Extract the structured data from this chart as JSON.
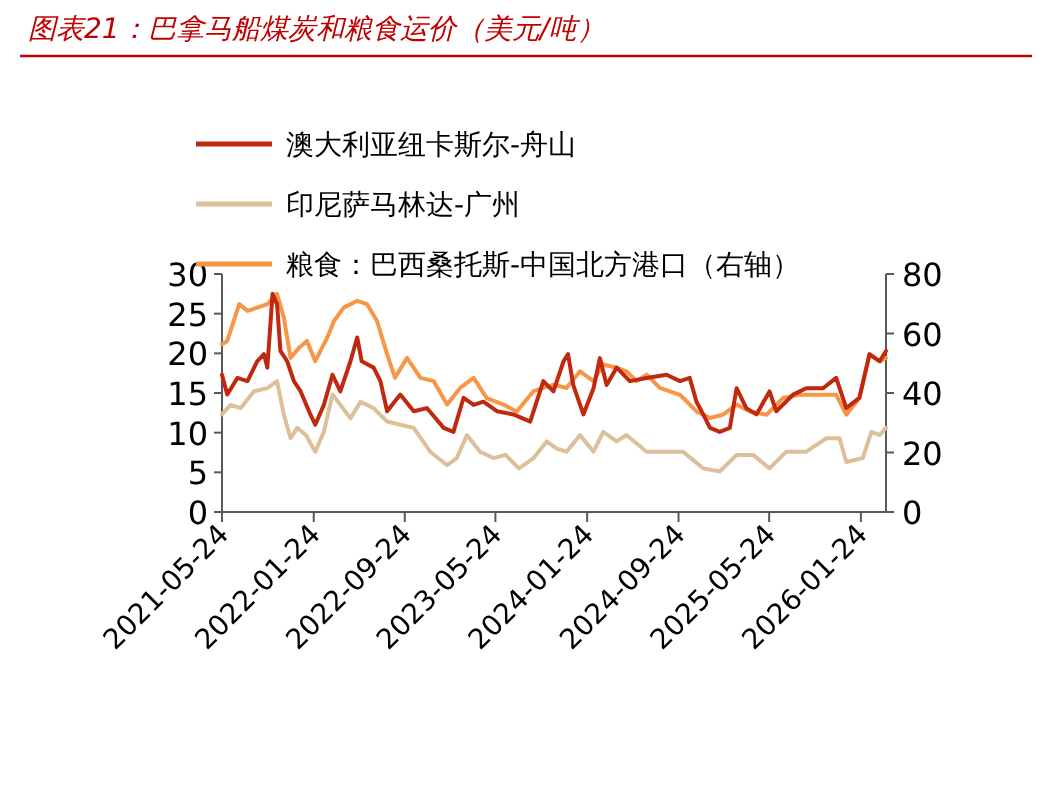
{
  "chart_data": {
    "type": "line",
    "title": "图表21：巴拿马船煤炭和粮食运价（美元/吨）",
    "legend": "top left",
    "grid": false,
    "xlim": [
      "2021-05-24",
      "2026-04-01"
    ],
    "xticks": [
      "2021-05-24",
      "2022-01-24",
      "2022-09-24",
      "2023-05-24",
      "2024-01-24",
      "2024-09-24",
      "2025-05-24",
      "2026-01-24"
    ],
    "ylim": [
      0,
      30
    ],
    "yticks": [
      0,
      5,
      10,
      15,
      20,
      25,
      30
    ],
    "y2lim": [
      0,
      80
    ],
    "y2ticks": [
      0,
      20,
      40,
      60,
      80
    ],
    "series": [
      {
        "name": "澳大利亚纽卡斯尔-舟山",
        "color": "#c0280f",
        "x": [
          "2021-05-24",
          "2021-06-07",
          "2021-07-04",
          "2021-07-31",
          "2021-08-26",
          "2021-09-13",
          "2021-09-22",
          "2021-10-06",
          "2021-10-18",
          "2021-10-27",
          "2021-11-14",
          "2021-12-02",
          "2021-12-20",
          "2022-01-15",
          "2022-01-28",
          "2022-02-20",
          "2022-03-15",
          "2022-04-05",
          "2022-05-02",
          "2022-05-20",
          "2022-06-01",
          "2022-07-03",
          "2022-07-21",
          "2022-08-08",
          "2022-09-12",
          "2022-10-18",
          "2022-11-22",
          "2023-01-06",
          "2023-02-01",
          "2023-02-28",
          "2023-03-27",
          "2023-04-22",
          "2023-05-28",
          "2023-07-11",
          "2023-08-25",
          "2023-09-29",
          "2023-10-26",
          "2023-11-22",
          "2023-12-04",
          "2023-12-18",
          "2024-01-14",
          "2024-02-10",
          "2024-02-27",
          "2024-03-16",
          "2024-04-12",
          "2024-05-17",
          "2024-07-01",
          "2024-08-23",
          "2024-09-28",
          "2024-10-24",
          "2024-11-11",
          "2024-11-29",
          "2024-12-17",
          "2025-01-12",
          "2025-02-08",
          "2025-02-26",
          "2025-03-24",
          "2025-04-20",
          "2025-05-25",
          "2025-06-12",
          "2025-07-27",
          "2025-08-31",
          "2025-10-15",
          "2025-11-19",
          "2025-12-16",
          "2026-01-20",
          "2026-02-16",
          "2026-03-15",
          "2026-04-01"
        ],
        "values": [
          17.3,
          14.8,
          16.9,
          16.5,
          19,
          19.9,
          18.2,
          27.5,
          26.2,
          20.3,
          19,
          16.5,
          15.2,
          12.3,
          11,
          13.5,
          17.3,
          15.2,
          19,
          22,
          19,
          18.2,
          16.5,
          12.7,
          14.8,
          12.7,
          13.1,
          10.6,
          10.1,
          14.4,
          13.5,
          13.9,
          12.7,
          12.3,
          11.4,
          16.5,
          15.2,
          19,
          19.9,
          16,
          12.3,
          15.6,
          19.4,
          16,
          18.2,
          16.5,
          16.9,
          17.3,
          16.5,
          16.9,
          13.9,
          12.3,
          10.6,
          10.1,
          10.6,
          15.6,
          13.1,
          12.3,
          15.2,
          12.7,
          14.8,
          15.6,
          15.6,
          16.9,
          13.1,
          14.4,
          19.9,
          19,
          20.3
        ]
      },
      {
        "name": "印尼萨马林达-广州",
        "color": "#dcc09a",
        "x": [
          "2021-05-24",
          "2021-06-16",
          "2021-07-13",
          "2021-08-17",
          "2021-09-22",
          "2021-10-18",
          "2021-11-05",
          "2021-11-23",
          "2021-12-11",
          "2022-01-03",
          "2022-01-28",
          "2022-02-20",
          "2022-03-15",
          "2022-04-05",
          "2022-05-02",
          "2022-05-29",
          "2022-07-03",
          "2022-08-08",
          "2022-09-12",
          "2022-10-18",
          "2022-12-01",
          "2023-01-15",
          "2023-02-10",
          "2023-03-09",
          "2023-04-13",
          "2023-05-19",
          "2023-06-20",
          "2023-07-26",
          "2023-09-03",
          "2023-10-08",
          "2023-11-04",
          "2023-11-30",
          "2024-01-05",
          "2024-02-10",
          "2024-03-07",
          "2024-04-12",
          "2024-05-08",
          "2024-07-01",
          "2024-08-23",
          "2024-10-06",
          "2024-11-29",
          "2025-01-12",
          "2025-02-26",
          "2025-04-11",
          "2025-05-25",
          "2025-07-09",
          "2025-08-31",
          "2025-10-24",
          "2025-11-28",
          "2025-12-16",
          "2026-01-29",
          "2026-02-21",
          "2026-03-15",
          "2026-04-01"
        ],
        "values": [
          12.3,
          13.5,
          13.1,
          15.2,
          15.6,
          16.5,
          12.3,
          9.3,
          10.6,
          9.7,
          7.6,
          10.1,
          14.8,
          13.5,
          11.8,
          13.9,
          13.1,
          11.4,
          11,
          10.6,
          7.6,
          5.9,
          6.8,
          9.7,
          7.6,
          6.8,
          7.2,
          5.5,
          6.8,
          8.9,
          8.0,
          7.6,
          9.7,
          7.6,
          10.1,
          8.9,
          9.7,
          7.6,
          7.6,
          7.6,
          5.5,
          5.1,
          7.2,
          7.2,
          5.5,
          7.6,
          7.6,
          9.3,
          9.3,
          6.3,
          6.8,
          10.1,
          9.7,
          10.6
        ]
      },
      {
        "name": "粮食：巴西桑托斯-中国北方港口（右轴）",
        "color": "#f79646",
        "axis": "y2",
        "x": [
          "2021-05-24",
          "2021-06-07",
          "2021-07-09",
          "2021-07-31",
          "2021-08-26",
          "2021-09-22",
          "2021-10-18",
          "2021-11-05",
          "2021-11-23",
          "2021-12-16",
          "2022-01-06",
          "2022-01-28",
          "2022-03-01",
          "2022-03-19",
          "2022-04-14",
          "2022-05-20",
          "2022-06-15",
          "2022-07-12",
          "2022-08-08",
          "2022-08-29",
          "2022-09-30",
          "2022-11-05",
          "2022-12-10",
          "2023-01-15",
          "2023-02-19",
          "2023-03-27",
          "2023-05-01",
          "2023-06-15",
          "2023-07-20",
          "2023-09-03",
          "2023-10-26",
          "2023-11-30",
          "2024-01-05",
          "2024-02-10",
          "2024-03-07",
          "2024-04-12",
          "2024-05-08",
          "2024-06-04",
          "2024-07-01",
          "2024-08-05",
          "2024-09-28",
          "2024-11-11",
          "2024-12-17",
          "2025-01-21",
          "2025-02-26",
          "2025-04-02",
          "2025-05-17",
          "2025-06-30",
          "2025-08-13",
          "2025-10-06",
          "2025-11-19",
          "2025-12-16",
          "2026-01-20",
          "2026-02-16",
          "2026-03-15",
          "2026-04-01"
        ],
        "values": [
          56.4,
          57.5,
          69.9,
          67.6,
          68.7,
          69.9,
          73.3,
          65.4,
          51.8,
          55.2,
          57.5,
          50.7,
          58.6,
          64.2,
          68.7,
          71,
          69.9,
          64.2,
          53,
          45.1,
          51.8,
          45.1,
          44,
          36.1,
          41.7,
          45.1,
          38.3,
          36.1,
          33.8,
          40.6,
          42.8,
          41.7,
          47.3,
          44,
          49.6,
          48.5,
          47.3,
          44,
          46.2,
          41.7,
          39.4,
          33.8,
          31.6,
          32.7,
          36.1,
          33.8,
          32.7,
          38.3,
          39.4,
          39.4,
          39.4,
          32.7,
          38.3,
          53,
          50.7,
          51.8
        ]
      }
    ]
  }
}
